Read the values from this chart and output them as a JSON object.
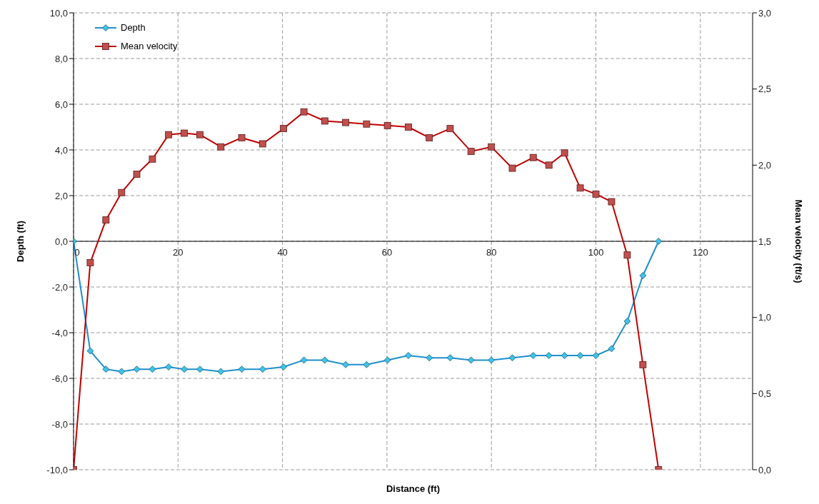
{
  "chart_data": {
    "type": "line",
    "xlabel": "Distance (ft)",
    "ylabel": "Depth (ft)",
    "y2label": "Mean velocity (ft/s)",
    "x": [
      0,
      3.2,
      6.2,
      9.2,
      12.1,
      15.1,
      18.2,
      21.2,
      24.2,
      28.2,
      32.2,
      36.2,
      40.2,
      44.1,
      48.1,
      52.1,
      56.1,
      60.1,
      64.1,
      68.1,
      72.1,
      76.1,
      80,
      84,
      88,
      91,
      94,
      97,
      100,
      103,
      106,
      109,
      112
    ],
    "series": [
      {
        "name": "Depth",
        "color": "#1f8fce",
        "marker": "diamond",
        "values": [
          0,
          -4.8,
          -5.6,
          -5.7,
          -5.6,
          -5.6,
          -5.5,
          -5.6,
          -5.6,
          -5.7,
          -5.6,
          -5.6,
          -5.5,
          -5.2,
          -5.2,
          -5.4,
          -5.4,
          -5.2,
          -5.0,
          -5.1,
          -5.1,
          -5.2,
          -5.2,
          -5.1,
          -5.0,
          -5.0,
          -5.0,
          -5.0,
          -5.0,
          -4.7,
          -3.5,
          -1.5,
          0
        ]
      },
      {
        "name": "Mean velocity",
        "color": "#c00000",
        "marker": "square",
        "axis": "y2",
        "values": [
          0,
          1.36,
          1.64,
          1.82,
          1.94,
          2.04,
          2.2,
          2.21,
          2.2,
          2.12,
          2.18,
          2.14,
          2.24,
          2.35,
          2.29,
          2.28,
          2.27,
          2.26,
          2.25,
          2.18,
          2.24,
          2.09,
          2.12,
          1.98,
          2.05,
          2.0,
          2.08,
          1.85,
          1.81,
          1.76,
          1.41,
          0.69,
          0
        ]
      }
    ],
    "xlim": [
      0,
      130
    ],
    "xticks": [
      0,
      20,
      40,
      60,
      80,
      100,
      120
    ],
    "ylim": [
      -10,
      10
    ],
    "yticks": [
      {
        "value": -10,
        "label": "-10,0"
      },
      {
        "value": -8,
        "label": "-8,0"
      },
      {
        "value": -6,
        "label": "-6,0"
      },
      {
        "value": -4,
        "label": "-4,0"
      },
      {
        "value": -2,
        "label": "-2,0"
      },
      {
        "value": 0,
        "label": "0,0"
      },
      {
        "value": 2,
        "label": "2,0"
      },
      {
        "value": 4,
        "label": "4,0"
      },
      {
        "value": 6,
        "label": "6,0"
      },
      {
        "value": 8,
        "label": "8,0"
      },
      {
        "value": 10,
        "label": "10,0"
      }
    ],
    "y2lim": [
      0,
      3
    ],
    "y2ticks": [
      {
        "value": 0,
        "label": "0,0"
      },
      {
        "value": 0.5,
        "label": "0,5"
      },
      {
        "value": 1,
        "label": "1,0"
      },
      {
        "value": 1.5,
        "label": "1,5"
      },
      {
        "value": 2,
        "label": "2,0"
      },
      {
        "value": 2.5,
        "label": "2,5"
      },
      {
        "value": 3,
        "label": "3,0"
      }
    ],
    "grid": true,
    "legend": "top left",
    "line_style": "solid"
  }
}
